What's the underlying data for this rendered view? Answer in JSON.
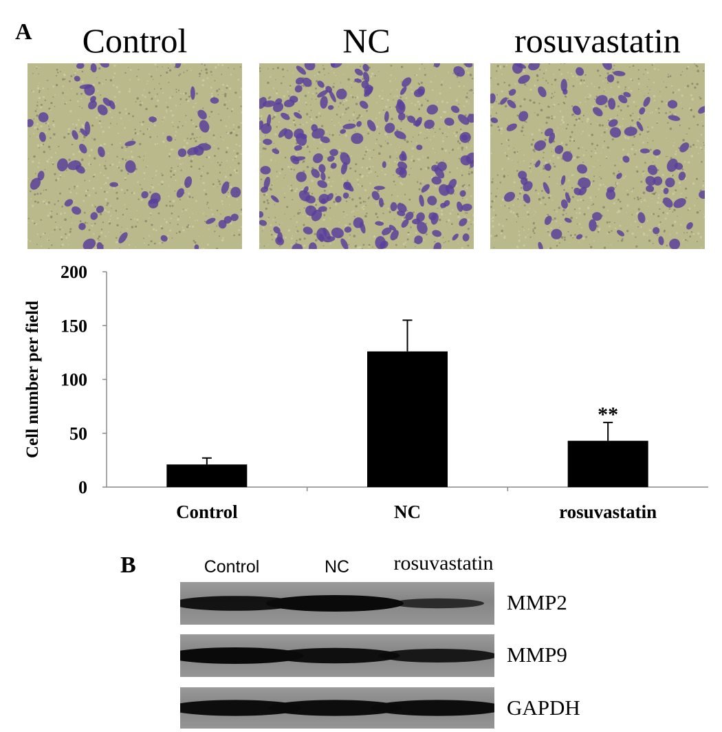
{
  "panel_a": {
    "letter": "A",
    "image_titles": [
      "Control",
      "NC",
      "rosuvastatin"
    ],
    "cell_counts_shown": [
      60,
      170,
      85
    ],
    "colors": {
      "background": "#b9b98c",
      "cell": "#5b3f9a",
      "speck": "#6b6b5a"
    }
  },
  "chart_data": {
    "type": "bar",
    "categories": [
      "Control",
      "NC",
      "rosuvastatin"
    ],
    "values": [
      21,
      126,
      43
    ],
    "errors": [
      6,
      29,
      17
    ],
    "annotations": [
      "",
      "",
      "**"
    ],
    "title": "",
    "xlabel": "",
    "ylabel": "Cell number per field",
    "ylim": [
      0,
      200
    ],
    "yticks": [
      0,
      50,
      100,
      150,
      200
    ],
    "grid": false,
    "bar_color": "#000000"
  },
  "panel_b": {
    "letter": "B",
    "lane_labels": [
      "Control",
      "NC",
      "rosuvastatin"
    ],
    "proteins": [
      {
        "name": "MMP2",
        "intensities": [
          0.85,
          1.0,
          0.4
        ]
      },
      {
        "name": "MMP9",
        "intensities": [
          1.0,
          0.9,
          0.75
        ]
      },
      {
        "name": "GAPDH",
        "intensities": [
          0.95,
          0.95,
          0.95
        ]
      }
    ]
  }
}
